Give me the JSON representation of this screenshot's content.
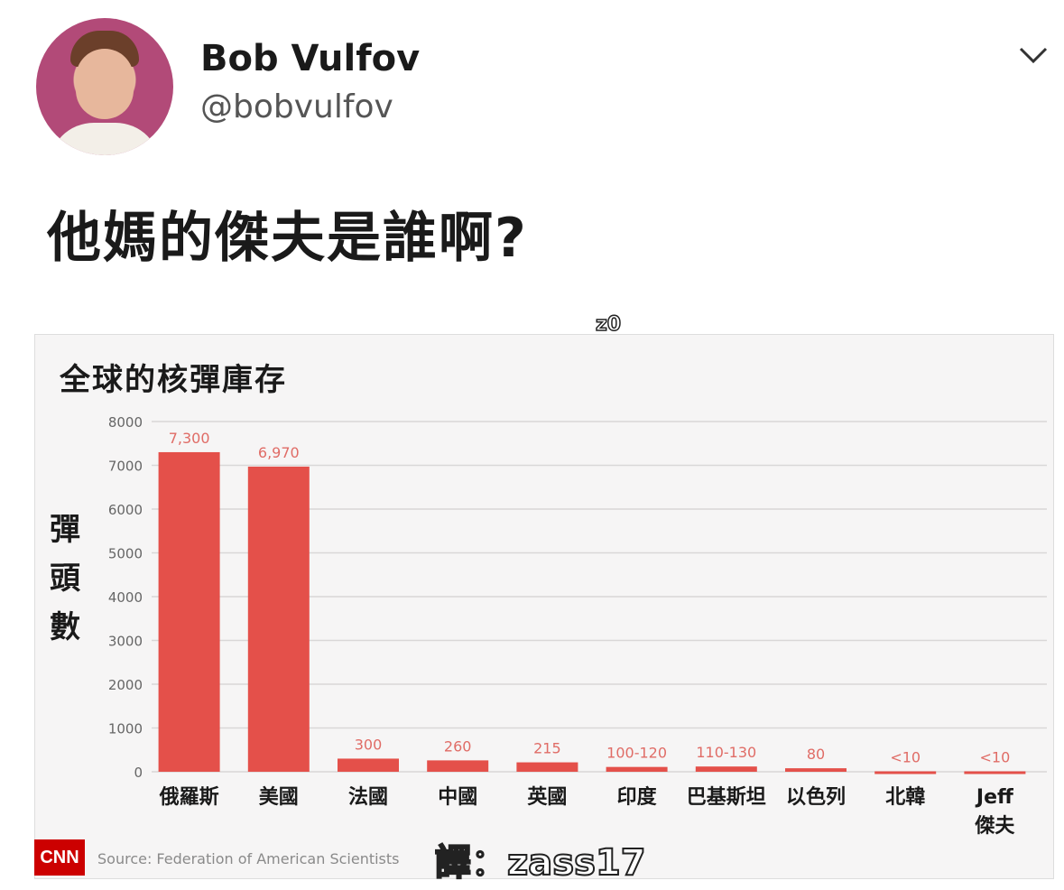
{
  "tweet": {
    "display_name": "Bob Vulfov",
    "handle": "@bobvulfov",
    "text": "他媽的傑夫是誰啊?"
  },
  "watermark_top": "z0",
  "translator_credit": "譯：zass17",
  "source_text": "Source: Federation of American Scientists",
  "brand_logo": "CNN",
  "colors": {
    "bar": "#e4504a",
    "label": "#e06c66",
    "grid": "#d9d7d7"
  },
  "chart_data": {
    "type": "bar",
    "title": "全球的核彈庫存",
    "ylabel": "彈頭數",
    "xlabel": "",
    "ylim": [
      0,
      8000
    ],
    "yticks": [
      "0",
      "1000",
      "2000",
      "3000",
      "4000",
      "5000",
      "6000",
      "7000",
      "8000"
    ],
    "categories": [
      "俄羅斯",
      "美國",
      "法國",
      "中國",
      "英國",
      "印度",
      "巴基斯坦",
      "以色列",
      "北韓",
      "Jeff\n傑夫"
    ],
    "values": [
      7300,
      6970,
      300,
      260,
      215,
      110,
      120,
      80,
      10,
      10
    ],
    "value_labels": [
      "7,300",
      "6,970",
      "300",
      "260",
      "215",
      "100-120",
      "110-130",
      "80",
      "<10",
      "<10"
    ]
  }
}
